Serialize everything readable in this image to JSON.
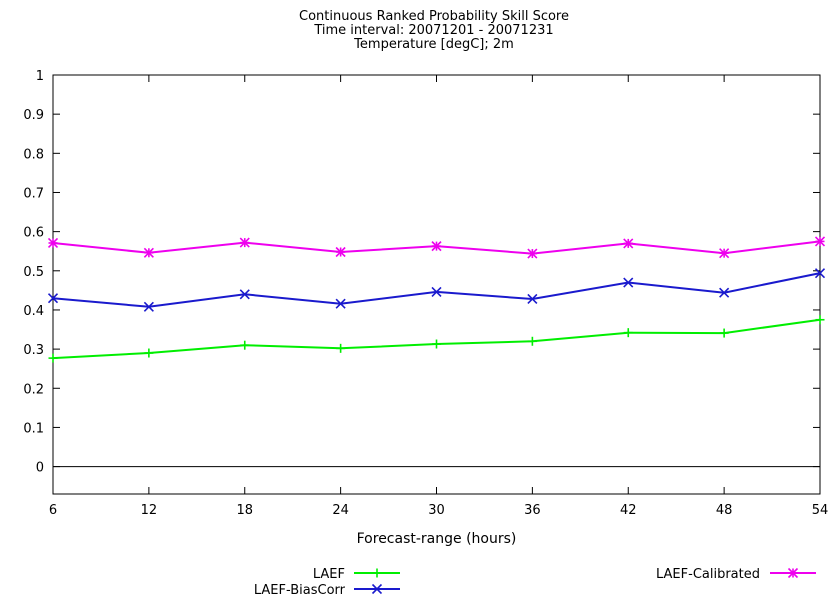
{
  "chart_data": {
    "type": "line",
    "title_lines": [
      "Continuous Ranked Probability Skill Score",
      "Time interval: 20071201 - 20071231",
      "Temperature [degC]; 2m"
    ],
    "xlabel": "Forecast-range (hours)",
    "ylabel": "",
    "x": [
      6,
      12,
      18,
      24,
      30,
      36,
      42,
      48,
      54
    ],
    "xlim": [
      6,
      54
    ],
    "ylim": [
      -0.07,
      1
    ],
    "xticks": [
      6,
      12,
      18,
      24,
      30,
      36,
      42,
      48,
      54
    ],
    "yticks": [
      0,
      0.1,
      0.2,
      0.3,
      0.4,
      0.5,
      0.6,
      0.7,
      0.8,
      0.9,
      1
    ],
    "ytick_labels": [
      "0",
      "0.1",
      "0.2",
      "0.3",
      "0.4",
      "0.5",
      "0.6",
      "0.7",
      "0.8",
      "0.9",
      "1"
    ],
    "zero_line": true,
    "grid": false,
    "legend_position": "bottom",
    "series": [
      {
        "name": "LAEF",
        "color": "#00ee00",
        "marker": "plus",
        "values": [
          0.277,
          0.29,
          0.31,
          0.302,
          0.313,
          0.32,
          0.342,
          0.341,
          0.375
        ]
      },
      {
        "name": "LAEF-BiasCorr",
        "color": "#1a1acd",
        "marker": "cross",
        "values": [
          0.43,
          0.408,
          0.44,
          0.416,
          0.446,
          0.428,
          0.47,
          0.444,
          0.494
        ]
      },
      {
        "name": "LAEF-Calibrated",
        "color": "#ee00ee",
        "marker": "star",
        "values": [
          0.571,
          0.546,
          0.572,
          0.548,
          0.563,
          0.544,
          0.57,
          0.545,
          0.575
        ]
      }
    ]
  }
}
